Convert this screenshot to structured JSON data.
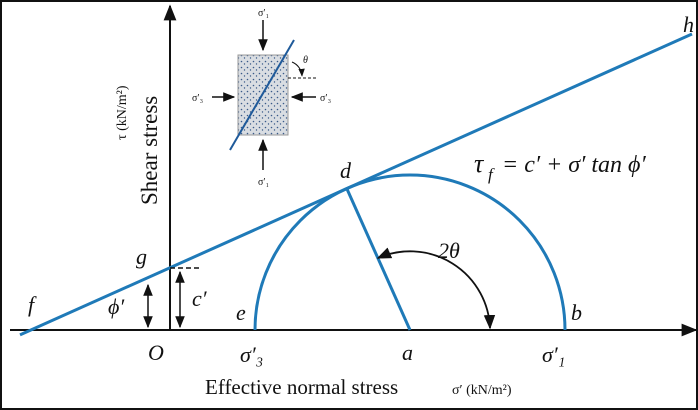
{
  "points": {
    "f": "f",
    "g": "g",
    "d": "d",
    "h": "h",
    "e": "e",
    "a": "a",
    "b": "b",
    "O": "O"
  },
  "axes": {
    "x_label": "Effective normal stress",
    "x_unit": "σ′ (kN/m²)",
    "y_label": "Shear stress",
    "y_unit": "τ (kN/m²)"
  },
  "stresses": {
    "sigma3": "σ′₃",
    "sigma1": "σ′₁"
  },
  "angles": {
    "phi": "ϕ′",
    "cohesion": "c′",
    "two_theta": "2θ",
    "theta": "θ"
  },
  "equation": {
    "symbol": "τ",
    "subscript": "f",
    "rest": "= c′ + σ′ tan ϕ′"
  },
  "specimen": {
    "top": "σ′₁",
    "bottom": "σ′₁",
    "left": "σ′₃",
    "right": "σ′₃"
  }
}
